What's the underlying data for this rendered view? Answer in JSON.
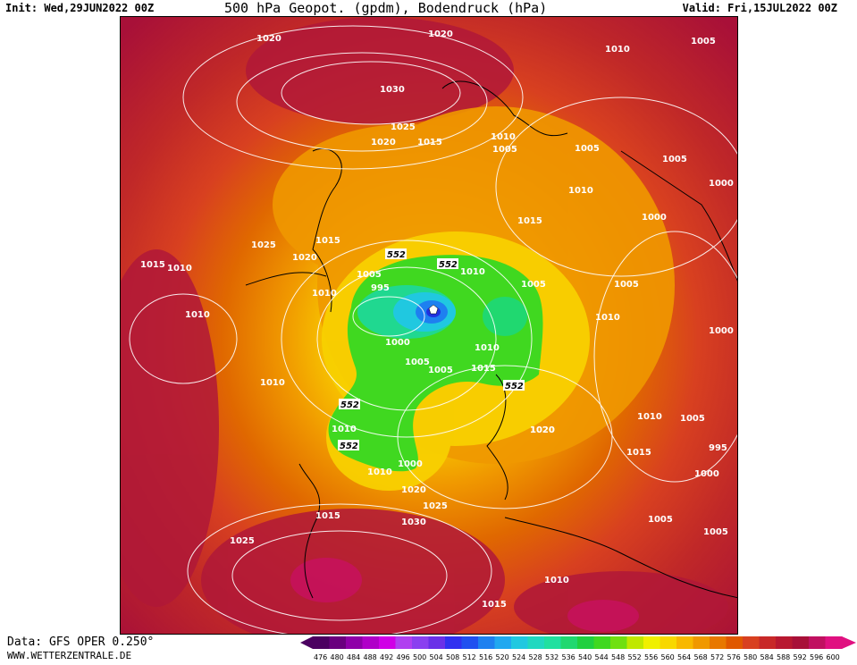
{
  "header": {
    "init": "Init: Wed,29JUN2022 00Z",
    "title": "500 hPa Geopot. (gpdm), Bodendruck (hPa)",
    "valid": "Valid: Fri,15JUL2022 00Z"
  },
  "footer": {
    "data_source": "Data: GFS OPER 0.250°",
    "website": "WWW.WETTERZENTRALE.DE"
  },
  "color_scale": {
    "values": [
      "476",
      "480",
      "484",
      "488",
      "492",
      "496",
      "500",
      "504",
      "508",
      "512",
      "516",
      "520",
      "524",
      "528",
      "532",
      "536",
      "540",
      "544",
      "548",
      "552",
      "556",
      "560",
      "564",
      "568",
      "572",
      "576",
      "580",
      "584",
      "588",
      "592",
      "596",
      "600"
    ],
    "colors": [
      "#4b0060",
      "#6a007e",
      "#8f00a8",
      "#b000c8",
      "#d000e6",
      "#b040f0",
      "#8a40f0",
      "#6a30e8",
      "#3030f0",
      "#2050f0",
      "#1e80f0",
      "#20a8f0",
      "#20c8e0",
      "#20d8c0",
      "#20e0a0",
      "#20d870",
      "#20d040",
      "#40d820",
      "#70e010",
      "#c0e800",
      "#f0f000",
      "#f8d800",
      "#f8b800",
      "#f09800",
      "#e87800",
      "#e05800",
      "#d84020",
      "#c82828",
      "#b81830",
      "#a81038",
      "#c01060",
      "#e01080"
    ]
  },
  "isobar_labels": [
    {
      "text": "1020"
    },
    {
      "text": "1020"
    },
    {
      "text": "1010"
    },
    {
      "text": "1005"
    },
    {
      "text": "1030"
    },
    {
      "text": "1025"
    },
    {
      "text": "1020"
    },
    {
      "text": "1015"
    },
    {
      "text": "1010"
    },
    {
      "text": "1005"
    },
    {
      "text": "1005"
    },
    {
      "text": "1005"
    },
    {
      "text": "1010"
    },
    {
      "text": "1000"
    },
    {
      "text": "1015"
    },
    {
      "text": "1000"
    },
    {
      "text": "1025"
    },
    {
      "text": "1015"
    },
    {
      "text": "1020"
    },
    {
      "text": "1015"
    },
    {
      "text": "1010"
    },
    {
      "text": "1010"
    },
    {
      "text": "1005"
    },
    {
      "text": "1010"
    },
    {
      "text": "1005"
    },
    {
      "text": "1010"
    },
    {
      "text": "995"
    },
    {
      "text": "1010"
    },
    {
      "text": "1000"
    },
    {
      "text": "1010"
    },
    {
      "text": "1000"
    },
    {
      "text": "1005"
    },
    {
      "text": "1005"
    },
    {
      "text": "1015"
    },
    {
      "text": "1005"
    },
    {
      "text": "1010"
    },
    {
      "text": "1010"
    },
    {
      "text": "1020"
    },
    {
      "text": "1010"
    },
    {
      "text": "1005"
    },
    {
      "text": "1015"
    },
    {
      "text": "995"
    },
    {
      "text": "1010"
    },
    {
      "text": "1000"
    },
    {
      "text": "1000"
    },
    {
      "text": "1020"
    },
    {
      "text": "1020"
    },
    {
      "text": "1025"
    },
    {
      "text": "1015"
    },
    {
      "text": "1030"
    },
    {
      "text": "1025"
    },
    {
      "text": "1005"
    },
    {
      "text": "1005"
    },
    {
      "text": "1010"
    },
    {
      "text": "1015"
    }
  ],
  "height_labels": [
    {
      "text": "552"
    },
    {
      "text": "552"
    },
    {
      "text": "552"
    },
    {
      "text": "552"
    },
    {
      "text": "552"
    }
  ]
}
